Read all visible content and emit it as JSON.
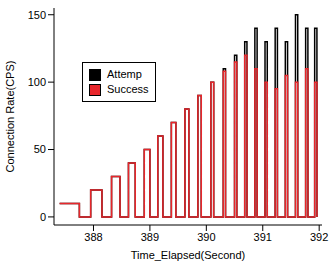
{
  "chart_data": {
    "type": "line",
    "x_label": "Time_Elapsed(Second)",
    "y_label": "Connection Rate(CPS)",
    "xlim": [
      387.3,
      392.05
    ],
    "xticks": [
      388,
      389,
      390,
      391,
      392
    ],
    "ylim": [
      -6,
      155
    ],
    "yticks": [
      0,
      50,
      100,
      150
    ],
    "legend": "upper left",
    "grid": false,
    "x": [
      387.4,
      387.75,
      387.75,
      387.95,
      387.95,
      388.15,
      388.15,
      388.32,
      388.32,
      388.47,
      388.47,
      388.62,
      388.62,
      388.74,
      388.74,
      388.9,
      388.9,
      389.0,
      389.0,
      389.14,
      389.14,
      389.23,
      389.23,
      389.38,
      389.38,
      389.46,
      389.46,
      389.62,
      389.62,
      389.69,
      389.69,
      389.85,
      389.85,
      389.91,
      389.91,
      390.08,
      390.08,
      390.13,
      390.13,
      390.3,
      390.3,
      390.34,
      390.34,
      390.5,
      390.5,
      390.54,
      390.54,
      390.68,
      390.68,
      390.72,
      390.72,
      390.86,
      390.86,
      390.9,
      390.9,
      391.04,
      391.04,
      391.08,
      391.08,
      391.22,
      391.22,
      391.26,
      391.26,
      391.4,
      391.4,
      391.44,
      391.44,
      391.58,
      391.58,
      391.62,
      391.62,
      391.76,
      391.76,
      391.8,
      391.8,
      391.92,
      391.92,
      391.96,
      391.96
    ],
    "series": [
      {
        "name": "Attemp",
        "color": "#000000",
        "values": [
          10,
          10,
          0,
          0,
          20,
          20,
          0,
          0,
          30,
          30,
          0,
          0,
          40,
          40,
          0,
          0,
          50,
          50,
          0,
          0,
          60,
          60,
          0,
          0,
          70,
          70,
          0,
          0,
          80,
          80,
          0,
          0,
          90,
          90,
          0,
          0,
          100,
          100,
          0,
          0,
          110,
          110,
          0,
          0,
          120,
          120,
          0,
          0,
          130,
          130,
          0,
          0,
          140,
          140,
          0,
          0,
          130,
          130,
          0,
          0,
          140,
          140,
          0,
          0,
          130,
          130,
          0,
          0,
          150,
          150,
          0,
          0,
          140,
          140,
          0,
          0,
          140,
          140,
          0
        ]
      },
      {
        "name": "Success",
        "color": "#e8262b",
        "values": [
          10,
          10,
          0,
          0,
          20,
          20,
          0,
          0,
          30,
          30,
          0,
          0,
          40,
          40,
          0,
          0,
          50,
          50,
          0,
          0,
          60,
          60,
          0,
          0,
          70,
          70,
          0,
          0,
          80,
          80,
          0,
          0,
          90,
          90,
          0,
          0,
          100,
          100,
          0,
          0,
          108,
          108,
          0,
          0,
          115,
          115,
          0,
          0,
          120,
          120,
          0,
          0,
          110,
          110,
          0,
          0,
          100,
          100,
          0,
          0,
          95,
          95,
          0,
          0,
          105,
          105,
          0,
          0,
          100,
          100,
          0,
          0,
          110,
          110,
          0,
          0,
          100,
          100,
          0
        ]
      }
    ]
  }
}
